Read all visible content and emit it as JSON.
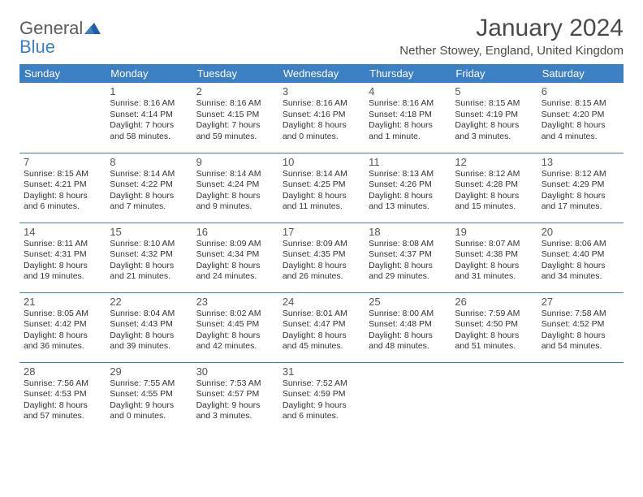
{
  "brand": {
    "name_a": "General",
    "name_b": "Blue"
  },
  "title": "January 2024",
  "location": "Nether Stowey, England, United Kingdom",
  "colors": {
    "accent": "#3b7fc4",
    "text": "#4a4a4a",
    "body": "#333333",
    "background": "#ffffff"
  },
  "day_headers": [
    "Sunday",
    "Monday",
    "Tuesday",
    "Wednesday",
    "Thursday",
    "Friday",
    "Saturday"
  ],
  "weeks": [
    [
      null,
      {
        "n": "1",
        "sr": "Sunrise: 8:16 AM",
        "ss": "Sunset: 4:14 PM",
        "dl": "Daylight: 7 hours and 58 minutes."
      },
      {
        "n": "2",
        "sr": "Sunrise: 8:16 AM",
        "ss": "Sunset: 4:15 PM",
        "dl": "Daylight: 7 hours and 59 minutes."
      },
      {
        "n": "3",
        "sr": "Sunrise: 8:16 AM",
        "ss": "Sunset: 4:16 PM",
        "dl": "Daylight: 8 hours and 0 minutes."
      },
      {
        "n": "4",
        "sr": "Sunrise: 8:16 AM",
        "ss": "Sunset: 4:18 PM",
        "dl": "Daylight: 8 hours and 1 minute."
      },
      {
        "n": "5",
        "sr": "Sunrise: 8:15 AM",
        "ss": "Sunset: 4:19 PM",
        "dl": "Daylight: 8 hours and 3 minutes."
      },
      {
        "n": "6",
        "sr": "Sunrise: 8:15 AM",
        "ss": "Sunset: 4:20 PM",
        "dl": "Daylight: 8 hours and 4 minutes."
      }
    ],
    [
      {
        "n": "7",
        "sr": "Sunrise: 8:15 AM",
        "ss": "Sunset: 4:21 PM",
        "dl": "Daylight: 8 hours and 6 minutes."
      },
      {
        "n": "8",
        "sr": "Sunrise: 8:14 AM",
        "ss": "Sunset: 4:22 PM",
        "dl": "Daylight: 8 hours and 7 minutes."
      },
      {
        "n": "9",
        "sr": "Sunrise: 8:14 AM",
        "ss": "Sunset: 4:24 PM",
        "dl": "Daylight: 8 hours and 9 minutes."
      },
      {
        "n": "10",
        "sr": "Sunrise: 8:14 AM",
        "ss": "Sunset: 4:25 PM",
        "dl": "Daylight: 8 hours and 11 minutes."
      },
      {
        "n": "11",
        "sr": "Sunrise: 8:13 AM",
        "ss": "Sunset: 4:26 PM",
        "dl": "Daylight: 8 hours and 13 minutes."
      },
      {
        "n": "12",
        "sr": "Sunrise: 8:12 AM",
        "ss": "Sunset: 4:28 PM",
        "dl": "Daylight: 8 hours and 15 minutes."
      },
      {
        "n": "13",
        "sr": "Sunrise: 8:12 AM",
        "ss": "Sunset: 4:29 PM",
        "dl": "Daylight: 8 hours and 17 minutes."
      }
    ],
    [
      {
        "n": "14",
        "sr": "Sunrise: 8:11 AM",
        "ss": "Sunset: 4:31 PM",
        "dl": "Daylight: 8 hours and 19 minutes."
      },
      {
        "n": "15",
        "sr": "Sunrise: 8:10 AM",
        "ss": "Sunset: 4:32 PM",
        "dl": "Daylight: 8 hours and 21 minutes."
      },
      {
        "n": "16",
        "sr": "Sunrise: 8:09 AM",
        "ss": "Sunset: 4:34 PM",
        "dl": "Daylight: 8 hours and 24 minutes."
      },
      {
        "n": "17",
        "sr": "Sunrise: 8:09 AM",
        "ss": "Sunset: 4:35 PM",
        "dl": "Daylight: 8 hours and 26 minutes."
      },
      {
        "n": "18",
        "sr": "Sunrise: 8:08 AM",
        "ss": "Sunset: 4:37 PM",
        "dl": "Daylight: 8 hours and 29 minutes."
      },
      {
        "n": "19",
        "sr": "Sunrise: 8:07 AM",
        "ss": "Sunset: 4:38 PM",
        "dl": "Daylight: 8 hours and 31 minutes."
      },
      {
        "n": "20",
        "sr": "Sunrise: 8:06 AM",
        "ss": "Sunset: 4:40 PM",
        "dl": "Daylight: 8 hours and 34 minutes."
      }
    ],
    [
      {
        "n": "21",
        "sr": "Sunrise: 8:05 AM",
        "ss": "Sunset: 4:42 PM",
        "dl": "Daylight: 8 hours and 36 minutes."
      },
      {
        "n": "22",
        "sr": "Sunrise: 8:04 AM",
        "ss": "Sunset: 4:43 PM",
        "dl": "Daylight: 8 hours and 39 minutes."
      },
      {
        "n": "23",
        "sr": "Sunrise: 8:02 AM",
        "ss": "Sunset: 4:45 PM",
        "dl": "Daylight: 8 hours and 42 minutes."
      },
      {
        "n": "24",
        "sr": "Sunrise: 8:01 AM",
        "ss": "Sunset: 4:47 PM",
        "dl": "Daylight: 8 hours and 45 minutes."
      },
      {
        "n": "25",
        "sr": "Sunrise: 8:00 AM",
        "ss": "Sunset: 4:48 PM",
        "dl": "Daylight: 8 hours and 48 minutes."
      },
      {
        "n": "26",
        "sr": "Sunrise: 7:59 AM",
        "ss": "Sunset: 4:50 PM",
        "dl": "Daylight: 8 hours and 51 minutes."
      },
      {
        "n": "27",
        "sr": "Sunrise: 7:58 AM",
        "ss": "Sunset: 4:52 PM",
        "dl": "Daylight: 8 hours and 54 minutes."
      }
    ],
    [
      {
        "n": "28",
        "sr": "Sunrise: 7:56 AM",
        "ss": "Sunset: 4:53 PM",
        "dl": "Daylight: 8 hours and 57 minutes."
      },
      {
        "n": "29",
        "sr": "Sunrise: 7:55 AM",
        "ss": "Sunset: 4:55 PM",
        "dl": "Daylight: 9 hours and 0 minutes."
      },
      {
        "n": "30",
        "sr": "Sunrise: 7:53 AM",
        "ss": "Sunset: 4:57 PM",
        "dl": "Daylight: 9 hours and 3 minutes."
      },
      {
        "n": "31",
        "sr": "Sunrise: 7:52 AM",
        "ss": "Sunset: 4:59 PM",
        "dl": "Daylight: 9 hours and 6 minutes."
      },
      null,
      null,
      null
    ]
  ]
}
